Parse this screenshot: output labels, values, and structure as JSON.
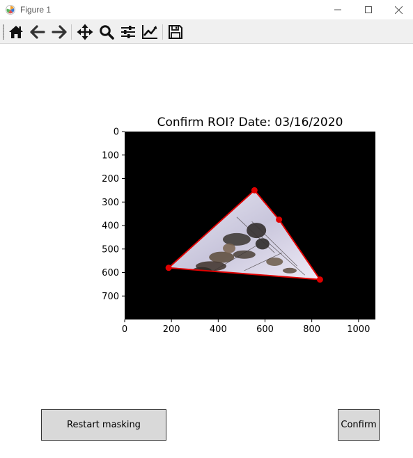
{
  "window": {
    "title": "Figure 1"
  },
  "toolbar": {
    "buttons": [
      {
        "name": "home-icon",
        "icon": "home"
      },
      {
        "name": "back-icon",
        "icon": "arrow-left"
      },
      {
        "name": "forward-icon",
        "icon": "arrow-right"
      },
      {
        "name": "pan-icon",
        "icon": "move"
      },
      {
        "name": "zoom-icon",
        "icon": "magnifier"
      },
      {
        "name": "subplots-icon",
        "icon": "sliders"
      },
      {
        "name": "axes-edit-icon",
        "icon": "line-chart"
      },
      {
        "name": "save-icon",
        "icon": "floppy-disk"
      }
    ]
  },
  "plot": {
    "title": "Confirm ROI? Date: 03/16/2020"
  },
  "chart_data": {
    "type": "scatter",
    "title": "Confirm ROI? Date: 03/16/2020",
    "xlabel": "",
    "ylabel": "",
    "xlim": [
      0,
      1072
    ],
    "ylim": [
      800,
      0
    ],
    "y_inverted": true,
    "x_ticks": [
      0,
      200,
      400,
      600,
      800,
      1000
    ],
    "y_ticks": [
      0,
      100,
      200,
      300,
      400,
      500,
      600,
      700
    ],
    "background_color": "#000000",
    "roi_color": "#e00000",
    "roi_points": [
      {
        "x": 555,
        "y": 250
      },
      {
        "x": 660,
        "y": 375
      },
      {
        "x": 835,
        "y": 630
      },
      {
        "x": 188,
        "y": 580
      }
    ],
    "polygon_closed": true,
    "grid": false,
    "legend": "none"
  },
  "buttons": {
    "restart_label": "Restart masking",
    "confirm_label": "Confirm"
  }
}
